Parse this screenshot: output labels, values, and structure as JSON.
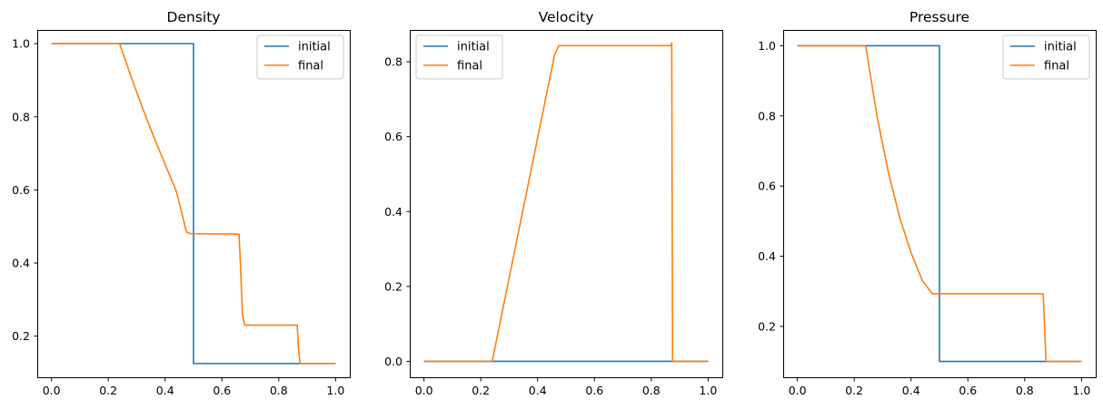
{
  "chart_data": [
    {
      "type": "line",
      "title": "Density",
      "xlabel": "",
      "ylabel": "",
      "xlim": [
        -0.05,
        1.05
      ],
      "ylim": [
        0.0875,
        1.0375
      ],
      "xticks": [
        "0.0",
        "0.2",
        "0.4",
        "0.6",
        "0.8",
        "1.0"
      ],
      "yticks": [
        "0.2",
        "0.4",
        "0.6",
        "0.8",
        "1.0"
      ],
      "legend_position": "top-right",
      "series": [
        {
          "name": "initial",
          "color": "#1f77b4",
          "x": [
            0.0,
            0.5,
            0.5,
            1.0
          ],
          "y": [
            1.0,
            1.0,
            0.125,
            0.125
          ]
        },
        {
          "name": "final",
          "color": "#ff7f0e",
          "x": [
            0.0,
            0.24,
            0.28,
            0.32,
            0.36,
            0.4,
            0.44,
            0.475,
            0.49,
            0.66,
            0.665,
            0.672,
            0.68,
            0.865,
            0.87,
            0.875,
            1.0
          ],
          "y": [
            1.0,
            1.0,
            0.91,
            0.825,
            0.745,
            0.67,
            0.595,
            0.485,
            0.48,
            0.479,
            0.4,
            0.26,
            0.23,
            0.23,
            0.16,
            0.125,
            0.125
          ]
        }
      ]
    },
    {
      "type": "line",
      "title": "Velocity",
      "xlabel": "",
      "ylabel": "",
      "xlim": [
        -0.05,
        1.05
      ],
      "ylim": [
        -0.0425,
        0.885
      ],
      "xticks": [
        "0.0",
        "0.2",
        "0.4",
        "0.6",
        "0.8",
        "1.0"
      ],
      "yticks": [
        "0.0",
        "0.2",
        "0.4",
        "0.6",
        "0.8"
      ],
      "legend_position": "top-left",
      "series": [
        {
          "name": "initial",
          "color": "#1f77b4",
          "x": [
            0.0,
            1.0
          ],
          "y": [
            0.0,
            0.0
          ]
        },
        {
          "name": "final",
          "color": "#ff7f0e",
          "x": [
            0.0,
            0.24,
            0.46,
            0.475,
            0.87,
            0.872,
            0.875,
            1.0
          ],
          "y": [
            0.0,
            0.0,
            0.82,
            0.843,
            0.843,
            0.85,
            0.0,
            0.0
          ]
        }
      ]
    },
    {
      "type": "line",
      "title": "Pressure",
      "xlabel": "",
      "ylabel": "",
      "xlim": [
        -0.05,
        1.05
      ],
      "ylim": [
        0.055,
        1.045
      ],
      "xticks": [
        "0.0",
        "0.2",
        "0.4",
        "0.6",
        "0.8",
        "1.0"
      ],
      "yticks": [
        "0.2",
        "0.4",
        "0.6",
        "0.8",
        "1.0"
      ],
      "legend_position": "top-right",
      "series": [
        {
          "name": "initial",
          "color": "#1f77b4",
          "x": [
            0.0,
            0.5,
            0.5,
            1.0
          ],
          "y": [
            1.0,
            1.0,
            0.1,
            0.1
          ]
        },
        {
          "name": "final",
          "color": "#ff7f0e",
          "x": [
            0.0,
            0.24,
            0.28,
            0.32,
            0.36,
            0.4,
            0.44,
            0.475,
            0.49,
            0.865,
            0.87,
            0.875,
            1.0
          ],
          "y": [
            1.0,
            1.0,
            0.8,
            0.64,
            0.51,
            0.41,
            0.33,
            0.293,
            0.293,
            0.293,
            0.2,
            0.1,
            0.1
          ]
        }
      ]
    }
  ]
}
